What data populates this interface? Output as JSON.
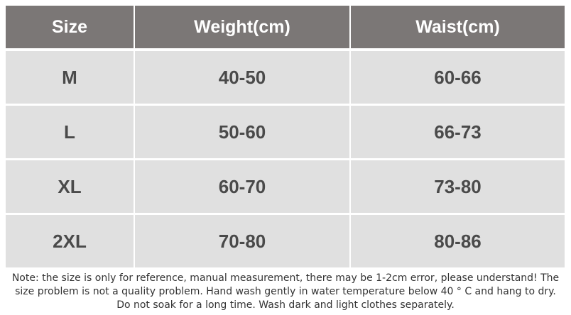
{
  "table": {
    "header": [
      "Size",
      "Weight(cm)",
      "Waist(cm)"
    ],
    "rows": [
      [
        "M",
        "40-50",
        "60-66"
      ],
      [
        "L",
        "50-60",
        "66-73"
      ],
      [
        "XL",
        "60-70",
        "73-80"
      ],
      [
        "2XL",
        "70-80",
        "80-86"
      ]
    ]
  },
  "note": {
    "lines": [
      "Note: the size is only for reference, manual measurement, there may be 1-2cm error, please understand! The",
      "size problem is not a quality problem. Hand wash gently in water temperature below 40 ° C and hang to dry.",
      "Do not soak for a long time. Wash dark and light clothes separately."
    ]
  }
}
